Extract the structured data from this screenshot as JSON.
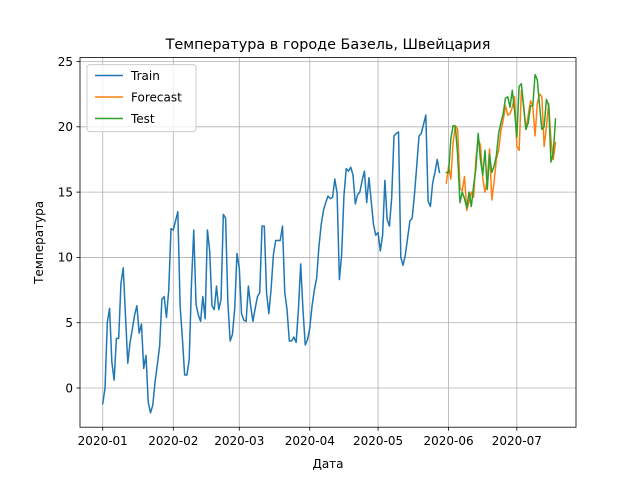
{
  "chart_data": {
    "type": "line",
    "title": "Температура в городе Базель, Швейцария",
    "xlabel": "Дата",
    "ylabel": "Температура",
    "x_axis": "date",
    "x_start": "2020-01-01",
    "xlim": [
      "2019-12-22",
      "2020-07-27"
    ],
    "ylim": [
      -3.0,
      25.3
    ],
    "grid": true,
    "legend_placement": "top-left",
    "x_ticks": [
      {
        "date": "2020-01-01",
        "label": "2020-01"
      },
      {
        "date": "2020-02-01",
        "label": "2020-02"
      },
      {
        "date": "2020-03-01",
        "label": "2020-03"
      },
      {
        "date": "2020-04-01",
        "label": "2020-04"
      },
      {
        "date": "2020-05-01",
        "label": "2020-05"
      },
      {
        "date": "2020-06-01",
        "label": "2020-06"
      },
      {
        "date": "2020-07-01",
        "label": "2020-07"
      }
    ],
    "y_ticks": [
      {
        "value": 0,
        "label": "0"
      },
      {
        "value": 5,
        "label": "5"
      },
      {
        "value": 10,
        "label": "10"
      },
      {
        "value": 15,
        "label": "15"
      },
      {
        "value": 20,
        "label": "20"
      },
      {
        "value": 25,
        "label": "25"
      }
    ],
    "series": [
      {
        "name": "Train",
        "color": "#1f77b4",
        "start": "2020-01-01",
        "values": [
          -1.2,
          0.0,
          5.0,
          6.1,
          2.0,
          0.6,
          3.8,
          3.8,
          8.0,
          9.2,
          5.5,
          1.9,
          3.5,
          4.5,
          5.6,
          6.3,
          4.2,
          4.9,
          1.5,
          2.5,
          -1.1,
          -1.9,
          -1.3,
          0.5,
          1.8,
          3.2,
          6.8,
          7.0,
          5.4,
          7.5,
          12.2,
          12.1,
          12.8,
          13.5,
          6.3,
          3.8,
          1.0,
          1.0,
          2.2,
          8.0,
          12.1,
          6.4,
          5.6,
          5.1,
          7.0,
          5.3,
          12.1,
          10.5,
          6.3,
          6.0,
          7.8,
          6.0,
          6.8,
          13.3,
          13.0,
          6.5,
          3.6,
          4.1,
          6.1,
          10.3,
          9.2,
          5.7,
          5.2,
          5.1,
          7.8,
          6.3,
          5.1,
          6.1,
          7.0,
          7.3,
          12.4,
          12.4,
          7.3,
          5.7,
          7.6,
          10.2,
          11.3,
          11.3,
          11.3,
          12.4,
          7.3,
          6.0,
          3.6,
          3.6,
          3.9,
          3.5,
          6.0,
          9.5,
          6.0,
          3.3,
          3.7,
          4.6,
          6.3,
          7.5,
          8.4,
          10.8,
          12.5,
          13.6,
          14.2,
          14.7,
          14.5,
          14.6,
          16.0,
          14.9,
          8.3,
          10.2,
          14.7,
          16.8,
          16.6,
          16.9,
          16.3,
          14.1,
          14.8,
          15.0,
          15.9,
          16.6,
          14.2,
          16.1,
          14.3,
          12.5,
          11.7,
          11.9,
          10.5,
          11.7,
          15.9,
          12.9,
          12.4,
          14.6,
          19.3,
          19.5,
          19.6,
          10.0,
          9.4,
          10.2,
          11.5,
          12.8,
          13.0,
          14.8,
          17.0,
          19.3,
          19.5,
          20.2,
          20.9,
          14.3,
          13.9,
          15.7,
          16.5,
          17.5,
          16.5
        ]
      },
      {
        "name": "Forecast",
        "color": "#ff7f0e",
        "start": "2020-05-31",
        "values": [
          15.7,
          17.0,
          16.0,
          18.8,
          20.1,
          19.8,
          15.3,
          15.1,
          16.2,
          13.6,
          14.3,
          15.0,
          14.6,
          17.5,
          19.1,
          18.6,
          16.1,
          15.0,
          16.0,
          18.3,
          14.4,
          15.8,
          17.5,
          18.2,
          19.7,
          20.5,
          21.6,
          20.9,
          21.0,
          21.5,
          22.3,
          18.5,
          18.2,
          22.8,
          21.6,
          19.8,
          20.9,
          22.0,
          21.6,
          19.3,
          21.8,
          22.5,
          22.3,
          18.5,
          20.0,
          21.8,
          19.0,
          17.5,
          18.8
        ]
      },
      {
        "name": "Test",
        "color": "#2ca02c",
        "start": "2020-05-31",
        "values": [
          16.5,
          16.5,
          19.1,
          20.1,
          20.0,
          17.8,
          14.2,
          15.0,
          14.5,
          13.8,
          15.0,
          13.9,
          15.5,
          16.8,
          19.5,
          17.5,
          16.3,
          18.2,
          15.2,
          17.9,
          16.5,
          17.0,
          17.8,
          19.5,
          20.3,
          21.0,
          22.2,
          22.3,
          21.5,
          22.8,
          21.2,
          19.2,
          23.1,
          23.3,
          21.5,
          19.8,
          20.3,
          21.6,
          21.6,
          24.0,
          23.6,
          21.6,
          19.8,
          20.0,
          22.1,
          21.6,
          17.3,
          18.0,
          20.6
        ]
      }
    ]
  }
}
